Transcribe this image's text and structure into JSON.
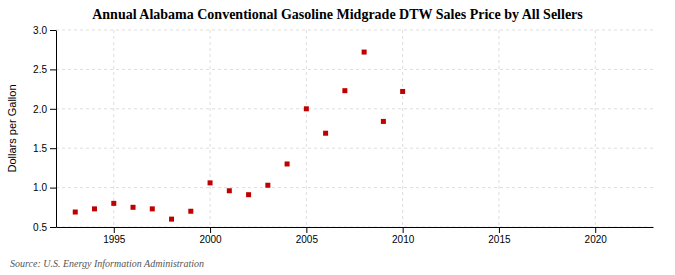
{
  "chart_data": {
    "type": "scatter",
    "title": "Annual Alabama Conventional Gasoline Midgrade DTW Sales Price by All Sellers",
    "ylabel": "Dollars per Gallon",
    "source": "Source: U.S. Energy Information Administration",
    "x": [
      1993,
      1994,
      1995,
      1996,
      1997,
      1998,
      1999,
      2000,
      2001,
      2002,
      2003,
      2004,
      2005,
      2006,
      2007,
      2008,
      2009,
      2010
    ],
    "values": [
      0.69,
      0.73,
      0.8,
      0.75,
      0.73,
      0.6,
      0.7,
      1.06,
      0.96,
      0.91,
      1.03,
      1.3,
      2.0,
      1.69,
      2.23,
      2.72,
      1.84,
      2.22
    ],
    "color": "#c00000",
    "marker": "square",
    "xlim": [
      1992,
      2023
    ],
    "ylim": [
      0.5,
      3.0
    ],
    "xticks": [
      1995,
      2000,
      2005,
      2010,
      2015,
      2020
    ],
    "yticks": [
      0.5,
      {
        "value": 1.0,
        "label": "1.0"
      },
      1.5,
      {
        "value": 2.0,
        "label": "2.0"
      },
      2.5,
      {
        "value": 3.0,
        "label": "3.0"
      }
    ],
    "grid": true
  }
}
